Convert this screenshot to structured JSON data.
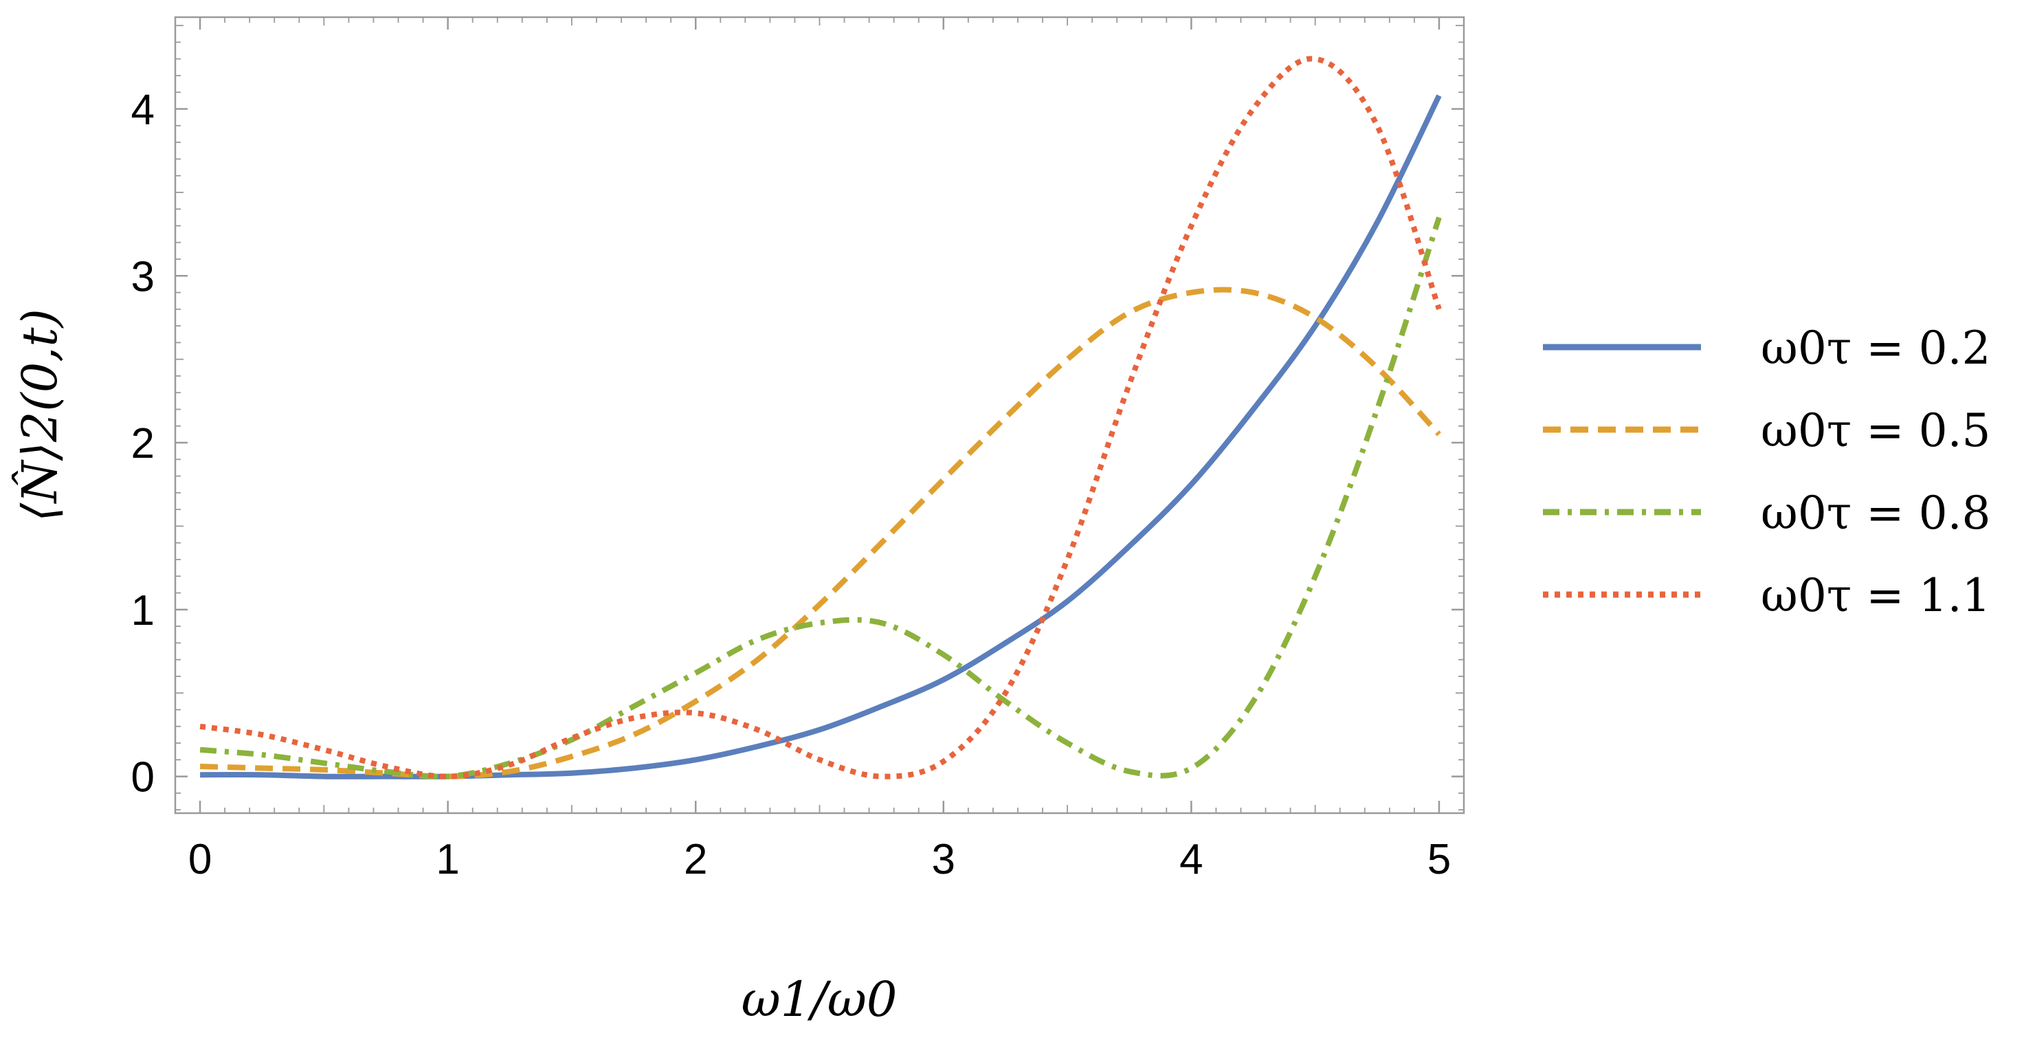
{
  "chart_data": {
    "type": "line",
    "xlabel": "ω1/ω0",
    "ylabel": "⟨N̂⟩2(0,t)",
    "xlim": [
      -0.1,
      5.1
    ],
    "ylim": [
      -0.22,
      4.55
    ],
    "xticks": [
      0,
      1,
      2,
      3,
      4,
      5
    ],
    "yticks": [
      0,
      1,
      2,
      3,
      4
    ],
    "xtick_labels": [
      "0",
      "1",
      "2",
      "3",
      "4",
      "5"
    ],
    "ytick_labels": [
      "0",
      "1",
      "2",
      "3",
      "4"
    ],
    "grid": false,
    "legend_position": "right",
    "x": [
      0,
      0.25,
      0.5,
      0.75,
      1,
      1.25,
      1.5,
      1.75,
      2,
      2.25,
      2.5,
      2.75,
      3,
      3.25,
      3.5,
      3.75,
      4,
      4.25,
      4.5,
      4.75,
      5
    ],
    "series": [
      {
        "name": "ω0τ = 0.2",
        "color": "#5b7fbc",
        "dash": "solid",
        "values": [
          0.01,
          0.01,
          0.0,
          0.0,
          0.0,
          0.01,
          0.02,
          0.05,
          0.1,
          0.18,
          0.28,
          0.42,
          0.58,
          0.8,
          1.05,
          1.38,
          1.75,
          2.2,
          2.7,
          3.32,
          4.08
        ]
      },
      {
        "name": "ω0τ = 0.5",
        "color": "#e0a030",
        "dash": "dashed",
        "values": [
          0.06,
          0.05,
          0.04,
          0.02,
          0.0,
          0.03,
          0.12,
          0.25,
          0.45,
          0.7,
          1.03,
          1.4,
          1.78,
          2.15,
          2.5,
          2.78,
          2.9,
          2.9,
          2.75,
          2.45,
          2.05
        ]
      },
      {
        "name": "ω0τ = 0.8",
        "color": "#8cb23c",
        "dash": "dashdot",
        "values": [
          0.16,
          0.13,
          0.08,
          0.03,
          0.0,
          0.08,
          0.22,
          0.42,
          0.62,
          0.82,
          0.92,
          0.92,
          0.73,
          0.45,
          0.2,
          0.03,
          0.05,
          0.45,
          1.2,
          2.2,
          3.35
        ]
      },
      {
        "name": "ω0τ = 1.1",
        "color": "#e8643c",
        "dash": "dotted",
        "values": [
          0.3,
          0.25,
          0.16,
          0.06,
          0.0,
          0.07,
          0.23,
          0.35,
          0.38,
          0.28,
          0.1,
          0.0,
          0.09,
          0.5,
          1.3,
          2.35,
          3.3,
          4.0,
          4.3,
          3.9,
          2.8
        ]
      }
    ]
  }
}
